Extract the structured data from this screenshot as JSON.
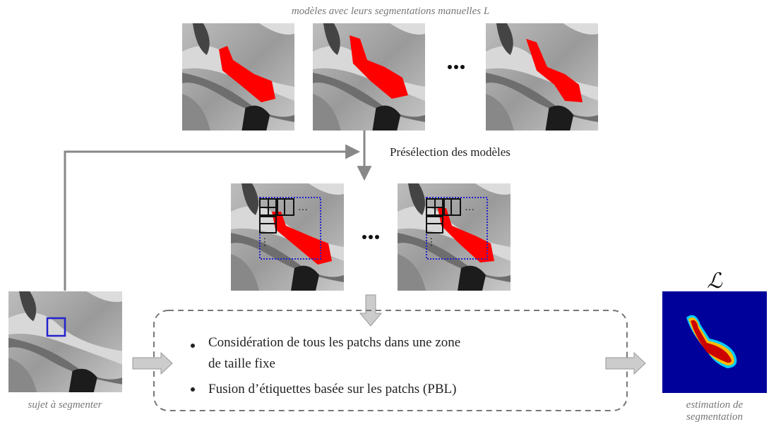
{
  "header": {
    "title": "modèles avec leurs segmentations manuelles L"
  },
  "steps": {
    "preselection": "Présélection des modèles"
  },
  "subject": {
    "label": "sujet à segmenter"
  },
  "fusion": {
    "bullets": [
      [
        "Considération de tous les patchs dans une zone",
        "de taille fixe"
      ],
      [
        "Fusion d’étiquettes basée sur les patchs (PBL)"
      ]
    ]
  },
  "output": {
    "symbol": "ℒ",
    "label": [
      "estimation de",
      "segmentation"
    ]
  }
}
